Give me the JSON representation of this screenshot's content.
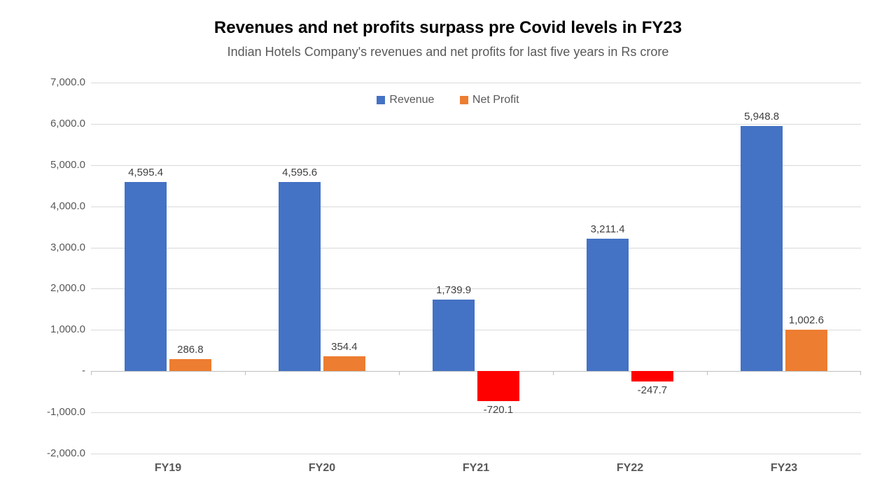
{
  "chart": {
    "type": "bar",
    "title": "Revenues and net profits surpass pre Covid levels in FY23",
    "subtitle": "Indian Hotels Company's revenues and net profits for last five years in Rs crore",
    "title_fontsize": 24,
    "subtitle_fontsize": 18,
    "title_color": "#000000",
    "subtitle_color": "#595959",
    "background_color": "#ffffff",
    "grid_color": "#d9d9d9",
    "axis_color": "#bfbfbf",
    "tick_label_color": "#595959",
    "tick_label_fontsize": 15,
    "x_label_fontsize": 16,
    "x_label_weight": "700",
    "data_label_fontsize": 15,
    "data_label_color": "#404040",
    "ylim": [
      -2000,
      7000
    ],
    "ytick_step": 1000,
    "ytick_labels": [
      "-2,000.0",
      "-1,000.0",
      "-",
      "1,000.0",
      "2,000.0",
      "3,000.0",
      "4,000.0",
      "5,000.0",
      "6,000.0",
      "7,000.0"
    ],
    "ytick_values": [
      -2000,
      -1000,
      0,
      1000,
      2000,
      3000,
      4000,
      5000,
      6000,
      7000
    ],
    "categories": [
      "FY19",
      "FY20",
      "FY21",
      "FY22",
      "FY23"
    ],
    "legend_position": "top-center",
    "series": [
      {
        "name": "Revenue",
        "color": "#4472c4",
        "values": [
          4595.4,
          4595.6,
          1739.9,
          3211.4,
          5948.8
        ],
        "labels": [
          "4,595.4",
          "4,595.6",
          "1,739.9",
          "3,211.4",
          "5,948.8"
        ]
      },
      {
        "name": "Net Profit",
        "color": "#ed7d31",
        "negative_color": "#ff0000",
        "values": [
          286.8,
          354.4,
          -720.1,
          -247.7,
          1002.6
        ],
        "labels": [
          "286.8",
          "354.4",
          "-720.1",
          "-247.7",
          "1,002.6"
        ]
      }
    ],
    "bar_width_ratio": 0.27,
    "bar_gap_ratio": 0.02
  }
}
